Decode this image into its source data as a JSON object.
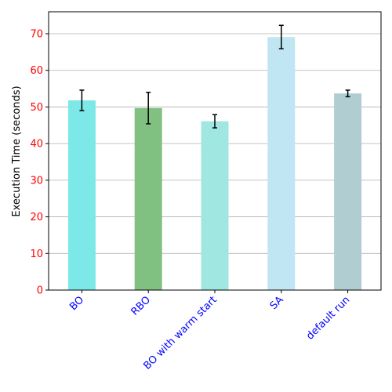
{
  "chart_data": {
    "type": "bar",
    "title": "",
    "xlabel": "",
    "ylabel": "Execution Time (seconds)",
    "categories": [
      "BO",
      "RBO",
      "BO with warm start",
      "SA",
      "default run"
    ],
    "values": [
      51.8,
      49.7,
      46.1,
      69.1,
      53.7
    ],
    "errors": [
      2.8,
      4.3,
      1.8,
      3.2,
      0.9
    ],
    "colors": [
      "#7de8e8",
      "#80c080",
      "#a0e6e1",
      "#c0e6f3",
      "#b0ced2"
    ],
    "ylim": [
      0,
      76
    ],
    "yticks": [
      0,
      10,
      20,
      30,
      40,
      50,
      60,
      70
    ],
    "ytick_color": "#ff0000",
    "xtick_color": "#0000ff",
    "grid": "y",
    "legend": "none"
  }
}
